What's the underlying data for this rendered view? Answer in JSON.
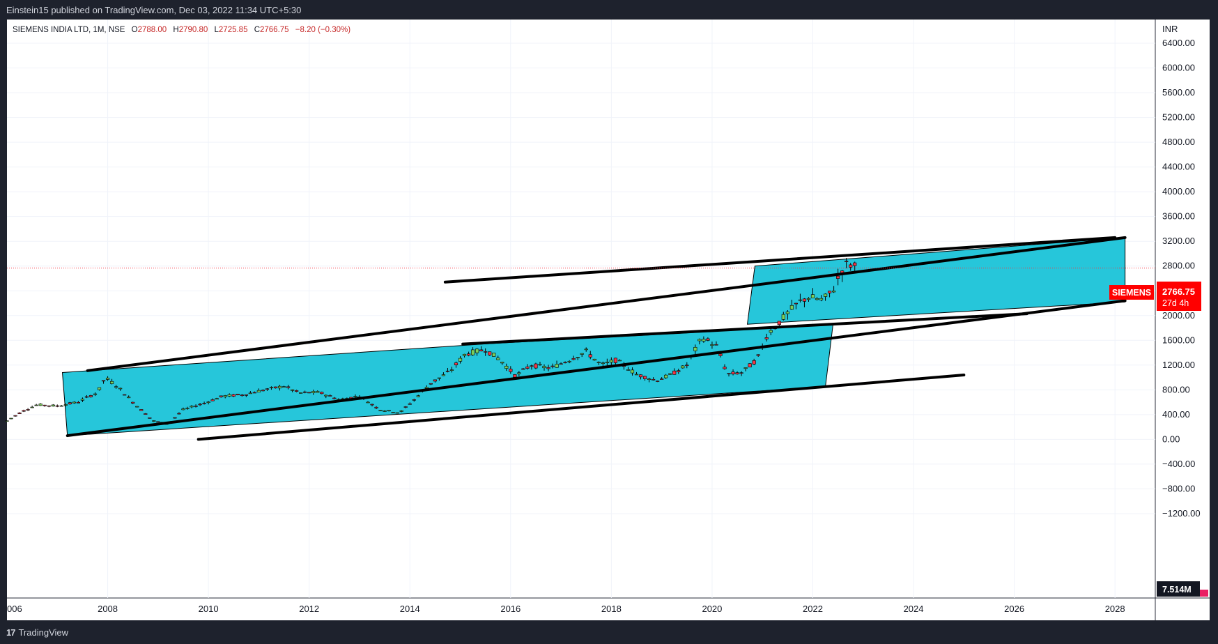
{
  "header": {
    "published": "Einstein15 published on TradingView.com, Dec 03, 2022 11:34 UTC+5:30"
  },
  "footer": {
    "logo_mark": "17",
    "brand": "TradingView"
  },
  "legend": {
    "symbol": "SIEMENS INDIA LTD, 1M, NSE",
    "o_label": "O",
    "o": "2788.00",
    "h_label": "H",
    "h": "2790.80",
    "l_label": "L",
    "l": "2725.85",
    "c_label": "C",
    "c": "2766.75",
    "change": "−8.20 (−0.30%)"
  },
  "price_tag": {
    "symbol": "SIEMENS",
    "price": "2766.75",
    "countdown": "27d 4h"
  },
  "volume_tag": "7.514M",
  "colors": {
    "up": "#26a69a",
    "bull_fill": "#7ccf5a",
    "bear_fill": "#f23645",
    "band": "#26c6da",
    "line": "#000000",
    "background": "#ffffff",
    "tag": "#ff0000"
  },
  "chart_data": {
    "type": "candlestick",
    "currency": "INR",
    "y_ticks": [
      "6400.00",
      "6000.00",
      "5600.00",
      "5200.00",
      "4800.00",
      "4400.00",
      "4000.00",
      "3600.00",
      "3200.00",
      "2800.00",
      "2400.00",
      "2000.00",
      "1600.00",
      "1200.00",
      "800.00",
      "400.00",
      "0.00",
      "−400.00",
      "−800.00",
      "−1200.00"
    ],
    "x_ticks": [
      "006",
      "2008",
      "2010",
      "2012",
      "2014",
      "2016",
      "2018",
      "2020",
      "2022",
      "2024",
      "2026",
      "2028"
    ],
    "last_price": 2766.75,
    "grid": true,
    "price_path": [
      [
        2006.0,
        300
      ],
      [
        2006.3,
        450
      ],
      [
        2006.6,
        560
      ],
      [
        2007.0,
        540
      ],
      [
        2007.4,
        600
      ],
      [
        2007.8,
        760
      ],
      [
        2007.95,
        1000
      ],
      [
        2008.2,
        850
      ],
      [
        2008.5,
        600
      ],
      [
        2008.9,
        300
      ],
      [
        2009.2,
        250
      ],
      [
        2009.5,
        480
      ],
      [
        2009.9,
        580
      ],
      [
        2010.3,
        700
      ],
      [
        2010.7,
        720
      ],
      [
        2011.0,
        780
      ],
      [
        2011.5,
        860
      ],
      [
        2011.8,
        750
      ],
      [
        2012.2,
        760
      ],
      [
        2012.6,
        640
      ],
      [
        2013.0,
        700
      ],
      [
        2013.4,
        480
      ],
      [
        2013.8,
        430
      ],
      [
        2014.1,
        650
      ],
      [
        2014.4,
        900
      ],
      [
        2014.8,
        1100
      ],
      [
        2015.1,
        1380
      ],
      [
        2015.5,
        1450
      ],
      [
        2015.8,
        1280
      ],
      [
        2016.1,
        1020
      ],
      [
        2016.4,
        1200
      ],
      [
        2016.8,
        1150
      ],
      [
        2017.2,
        1300
      ],
      [
        2017.5,
        1420
      ],
      [
        2017.8,
        1200
      ],
      [
        2018.1,
        1280
      ],
      [
        2018.5,
        1050
      ],
      [
        2018.9,
        950
      ],
      [
        2019.2,
        1050
      ],
      [
        2019.5,
        1200
      ],
      [
        2019.8,
        1650
      ],
      [
        2020.1,
        1500
      ],
      [
        2020.3,
        1050
      ],
      [
        2020.6,
        1080
      ],
      [
        2020.9,
        1300
      ],
      [
        2021.1,
        1700
      ],
      [
        2021.4,
        1950
      ],
      [
        2021.7,
        2200
      ],
      [
        2021.9,
        2300
      ],
      [
        2022.2,
        2250
      ],
      [
        2022.4,
        2400
      ],
      [
        2022.55,
        2700
      ],
      [
        2022.7,
        2850
      ],
      [
        2022.88,
        2767
      ]
    ],
    "drawings": {
      "lines": [
        [
          [
            2007.2,
            60
          ],
          [
            2028.2,
            2240
          ]
        ],
        [
          [
            2007.6,
            1110
          ],
          [
            2028.2,
            3260
          ]
        ],
        [
          [
            2015.05,
            1540
          ],
          [
            2026.25,
            2030
          ]
        ],
        [
          [
            2014.7,
            2540
          ],
          [
            2028.0,
            3260
          ]
        ],
        [
          [
            2009.8,
            0
          ],
          [
            2025.0,
            1040
          ]
        ]
      ],
      "bands": [
        [
          [
            2007.1,
            1080
          ],
          [
            2015.55,
            1545
          ],
          [
            2022.4,
            1850
          ],
          [
            2022.25,
            850
          ],
          [
            2007.2,
            60
          ]
        ],
        [
          [
            2020.85,
            2800
          ],
          [
            2028.2,
            3260
          ],
          [
            2028.2,
            2220
          ],
          [
            2020.7,
            1860
          ]
        ]
      ]
    }
  }
}
